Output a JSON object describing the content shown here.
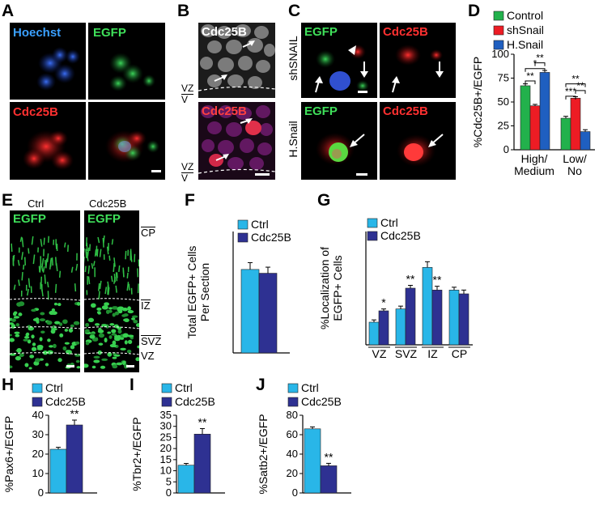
{
  "panel_labels": {
    "A": "A",
    "B": "B",
    "C": "C",
    "D": "D",
    "E": "E",
    "F": "F",
    "G": "G",
    "H": "H",
    "I": "I",
    "J": "J"
  },
  "micro_labels": {
    "a_hoechst": "Hoechst",
    "a_egfp": "EGFP",
    "a_cdc25b": "Cdc25B",
    "b_cdc25b_top": "Cdc25B",
    "b_cdc25b_bottom": "Cdc25B",
    "b_vz": "VZ",
    "b_v": "V",
    "c_egfp_top": "EGFP",
    "c_cdc25b_top": "Cdc25B",
    "c_egfp_bottom": "EGFP",
    "c_cdc25b_bottom": "Cdc25B",
    "c_row_top": "shSNAIL",
    "c_row_bottom": "H.Snail",
    "e_ctrl": "Ctrl",
    "e_cdc25b": "Cdc25B",
    "e_egfp1": "EGFP",
    "e_egfp2": "EGFP",
    "e_cp": "CP",
    "e_iz": "IZ",
    "e_svz": "SVZ",
    "e_vz": "VZ"
  },
  "colors": {
    "control": "#22b14c",
    "shsnail": "#ed1c24",
    "hsnail": "#1f5fc0",
    "ctrl": "#29b6e8",
    "cdc25b": "#2e3192"
  },
  "chart_data": [
    {
      "id": "D",
      "type": "bar",
      "categories": [
        "High/\nMedium",
        "Low/\nNo"
      ],
      "category_lines": [
        [
          "High/",
          "Medium"
        ],
        [
          "Low/",
          "No"
        ]
      ],
      "series": [
        {
          "name": "Control",
          "values": [
            67,
            33
          ],
          "errors": [
            2,
            2
          ]
        },
        {
          "name": "shSnail",
          "values": [
            46,
            54
          ],
          "errors": [
            1.5,
            1.5
          ]
        },
        {
          "name": "H.Snail",
          "values": [
            81,
            19
          ],
          "errors": [
            2,
            2
          ]
        }
      ],
      "ylabel": "%Cdc25B+/EGFP",
      "ylim": [
        0,
        100
      ],
      "yticks": [
        0,
        25,
        50,
        75,
        100
      ],
      "significance": [
        "**",
        "**",
        "*",
        "**",
        "**",
        "***"
      ],
      "legend": "top-right"
    },
    {
      "id": "F",
      "type": "bar",
      "categories": [
        ""
      ],
      "series": [
        {
          "name": "Ctrl",
          "values": [
            550
          ],
          "errors": [
            45
          ]
        },
        {
          "name": "Cdc25B",
          "values": [
            525
          ],
          "errors": [
            40
          ]
        }
      ],
      "ylabel_lines": [
        "Total EGFP+ Cells",
        "Per Section"
      ],
      "ylim": [
        0,
        800
      ],
      "legend": "top"
    },
    {
      "id": "G",
      "type": "bar",
      "categories": [
        "VZ",
        "SVZ",
        "IZ",
        "CP"
      ],
      "series": [
        {
          "name": "Ctrl",
          "values": [
            12,
            19,
            41,
            29
          ],
          "errors": [
            1.2,
            1.5,
            3,
            1.5
          ]
        },
        {
          "name": "Cdc25B",
          "values": [
            18,
            30,
            29,
            27
          ],
          "errors": [
            1,
            1.5,
            2,
            2
          ]
        }
      ],
      "significance": [
        "*",
        "**",
        "**",
        ""
      ],
      "ylabel_lines": [
        "%Localization of",
        "EGFP+ Cells"
      ],
      "ylim": [
        0,
        60
      ],
      "legend": "top"
    },
    {
      "id": "H",
      "type": "bar",
      "categories": [
        ""
      ],
      "series": [
        {
          "name": "Ctrl",
          "values": [
            22.5
          ],
          "errors": [
            1
          ]
        },
        {
          "name": "Cdc25B",
          "values": [
            35
          ],
          "errors": [
            2.5
          ]
        }
      ],
      "significance": [
        "**"
      ],
      "ylabel": "%Pax6+/EGFP",
      "ylim": [
        0,
        40
      ],
      "yticks": [
        0,
        10,
        20,
        30,
        40
      ],
      "legend": "top"
    },
    {
      "id": "I",
      "type": "bar",
      "categories": [
        ""
      ],
      "series": [
        {
          "name": "Ctrl",
          "values": [
            12.5
          ],
          "errors": [
            0.8
          ]
        },
        {
          "name": "Cdc25B",
          "values": [
            26.5
          ],
          "errors": [
            2.5
          ]
        }
      ],
      "significance": [
        "**"
      ],
      "ylabel": "%Tbr2+/EGFP",
      "ylim": [
        0,
        35
      ],
      "yticks": [
        0,
        5,
        10,
        15,
        20,
        25,
        30,
        35
      ],
      "legend": "top"
    },
    {
      "id": "J",
      "type": "bar",
      "categories": [
        ""
      ],
      "series": [
        {
          "name": "Ctrl",
          "values": [
            66
          ],
          "errors": [
            2
          ]
        },
        {
          "name": "Cdc25B",
          "values": [
            28
          ],
          "errors": [
            2.5
          ]
        }
      ],
      "significance": [
        "**"
      ],
      "ylabel": "%Satb2+/EGFP",
      "ylim": [
        0,
        80
      ],
      "yticks": [
        0,
        20,
        40,
        60,
        80
      ],
      "legend": "top"
    }
  ]
}
